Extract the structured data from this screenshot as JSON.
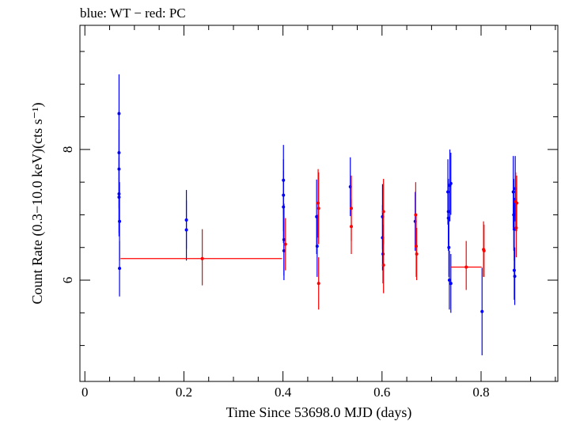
{
  "chart_data": {
    "type": "scatter",
    "title": "blue: WT − red: PC",
    "xlabel": "Time Since 53698.0 MJD (days)",
    "ylabel": "Count Rate (0.3−10.0 keV)(cts s⁻¹)",
    "xlim": [
      -0.01,
      0.955
    ],
    "ylim": [
      4.45,
      9.9
    ],
    "x_ticks": [
      "0",
      "0.2",
      "0.4",
      "0.6",
      "0.8"
    ],
    "x_tick_values": [
      0,
      0.2,
      0.4,
      0.6,
      0.8
    ],
    "y_ticks": [
      "6",
      "8"
    ],
    "y_tick_values": [
      6,
      8
    ],
    "series": [
      {
        "name": "WT",
        "color": "#0000ff",
        "points": [
          {
            "x": 0.069,
            "y": 8.55,
            "ylo": 7.95,
            "yhi": 9.15
          },
          {
            "x": 0.069,
            "y": 7.95,
            "ylo": 7.35,
            "yhi": 8.55
          },
          {
            "x": 0.069,
            "y": 7.7,
            "ylo": 7.1,
            "yhi": 8.3
          },
          {
            "x": 0.069,
            "y": 7.32,
            "ylo": 6.72,
            "yhi": 7.92
          },
          {
            "x": 0.069,
            "y": 7.27,
            "ylo": 6.67,
            "yhi": 7.87
          },
          {
            "x": 0.07,
            "y": 6.9,
            "ylo": 6.3,
            "yhi": 7.5
          },
          {
            "x": 0.07,
            "y": 6.18,
            "ylo": 5.75,
            "yhi": 6.6
          },
          {
            "x": 0.205,
            "y": 6.92,
            "ylo": 6.48,
            "yhi": 7.38
          },
          {
            "x": 0.205,
            "y": 6.77,
            "ylo": 6.3,
            "yhi": 7.22
          },
          {
            "x": 0.401,
            "y": 7.53,
            "ylo": 7.0,
            "yhi": 8.07
          },
          {
            "x": 0.401,
            "y": 7.3,
            "ylo": 6.75,
            "yhi": 7.85
          },
          {
            "x": 0.401,
            "y": 7.12,
            "ylo": 6.57,
            "yhi": 7.67
          },
          {
            "x": 0.402,
            "y": 6.62,
            "ylo": 6.07,
            "yhi": 7.17
          },
          {
            "x": 0.402,
            "y": 6.45,
            "ylo": 6.0,
            "yhi": 6.9
          },
          {
            "x": 0.468,
            "y": 6.97,
            "ylo": 6.4,
            "yhi": 7.54
          },
          {
            "x": 0.469,
            "y": 6.52,
            "ylo": 6.05,
            "yhi": 7.0
          },
          {
            "x": 0.536,
            "y": 7.43,
            "ylo": 6.98,
            "yhi": 7.88
          },
          {
            "x": 0.601,
            "y": 6.97,
            "ylo": 6.47,
            "yhi": 7.47
          },
          {
            "x": 0.601,
            "y": 6.65,
            "ylo": 6.15,
            "yhi": 7.15
          },
          {
            "x": 0.602,
            "y": 6.4,
            "ylo": 5.95,
            "yhi": 6.85
          },
          {
            "x": 0.667,
            "y": 6.9,
            "ylo": 6.45,
            "yhi": 7.35
          },
          {
            "x": 0.733,
            "y": 7.35,
            "ylo": 6.85,
            "yhi": 7.85
          },
          {
            "x": 0.734,
            "y": 7.05,
            "ylo": 6.55,
            "yhi": 7.55
          },
          {
            "x": 0.734,
            "y": 6.95,
            "ylo": 6.45,
            "yhi": 7.45
          },
          {
            "x": 0.735,
            "y": 6.5,
            "ylo": 6.05,
            "yhi": 6.95
          },
          {
            "x": 0.736,
            "y": 6.0,
            "ylo": 5.55,
            "yhi": 6.45
          },
          {
            "x": 0.737,
            "y": 7.45,
            "ylo": 6.9,
            "yhi": 8.0
          },
          {
            "x": 0.739,
            "y": 7.48,
            "ylo": 7.0,
            "yhi": 7.95
          },
          {
            "x": 0.739,
            "y": 5.95,
            "ylo": 5.5,
            "yhi": 6.4
          },
          {
            "x": 0.802,
            "y": 5.52,
            "ylo": 4.85,
            "yhi": 6.19
          },
          {
            "x": 0.865,
            "y": 7.35,
            "ylo": 6.8,
            "yhi": 7.9
          },
          {
            "x": 0.866,
            "y": 7.0,
            "ylo": 6.45,
            "yhi": 7.55
          },
          {
            "x": 0.867,
            "y": 6.78,
            "ylo": 6.3,
            "yhi": 7.26
          },
          {
            "x": 0.867,
            "y": 6.15,
            "ylo": 5.7,
            "yhi": 6.6
          },
          {
            "x": 0.868,
            "y": 6.06,
            "ylo": 5.62,
            "yhi": 6.5
          },
          {
            "x": 0.869,
            "y": 7.4,
            "ylo": 6.9,
            "yhi": 7.9
          }
        ]
      },
      {
        "name": "PC",
        "color": "#ff0000",
        "points": [
          {
            "x": 0.237,
            "xlo": 0.072,
            "xhi": 0.398,
            "y": 6.33,
            "ylo": 5.92,
            "yhi": 6.78
          },
          {
            "x": 0.405,
            "y": 6.55,
            "ylo": 6.15,
            "yhi": 6.95
          },
          {
            "x": 0.471,
            "y": 7.18,
            "ylo": 6.65,
            "yhi": 7.7
          },
          {
            "x": 0.472,
            "y": 7.1,
            "ylo": 6.55,
            "yhi": 7.65
          },
          {
            "x": 0.472,
            "y": 5.95,
            "ylo": 5.55,
            "yhi": 6.35
          },
          {
            "x": 0.538,
            "y": 7.1,
            "ylo": 6.6,
            "yhi": 7.6
          },
          {
            "x": 0.538,
            "y": 6.82,
            "ylo": 6.4,
            "yhi": 7.24
          },
          {
            "x": 0.603,
            "y": 7.05,
            "ylo": 6.55,
            "yhi": 7.55
          },
          {
            "x": 0.603,
            "y": 6.23,
            "ylo": 5.8,
            "yhi": 6.66
          },
          {
            "x": 0.668,
            "y": 7.0,
            "ylo": 6.5,
            "yhi": 7.5
          },
          {
            "x": 0.669,
            "y": 6.52,
            "ylo": 6.05,
            "yhi": 7.0
          },
          {
            "x": 0.67,
            "y": 6.4,
            "ylo": 6.0,
            "yhi": 6.8
          },
          {
            "x": 0.77,
            "xlo": 0.739,
            "xhi": 0.801,
            "y": 6.2,
            "ylo": 5.85,
            "yhi": 6.6
          },
          {
            "x": 0.805,
            "y": 6.47,
            "ylo": 6.05,
            "yhi": 6.9
          },
          {
            "x": 0.806,
            "y": 6.45,
            "ylo": 6.05,
            "yhi": 6.85
          },
          {
            "x": 0.87,
            "y": 7.2,
            "ylo": 6.75,
            "yhi": 7.65
          },
          {
            "x": 0.871,
            "y": 6.8,
            "ylo": 6.35,
            "yhi": 7.25
          },
          {
            "x": 0.872,
            "y": 7.18,
            "ylo": 6.75,
            "yhi": 7.6
          }
        ]
      }
    ],
    "grid": false,
    "legend": "none"
  }
}
